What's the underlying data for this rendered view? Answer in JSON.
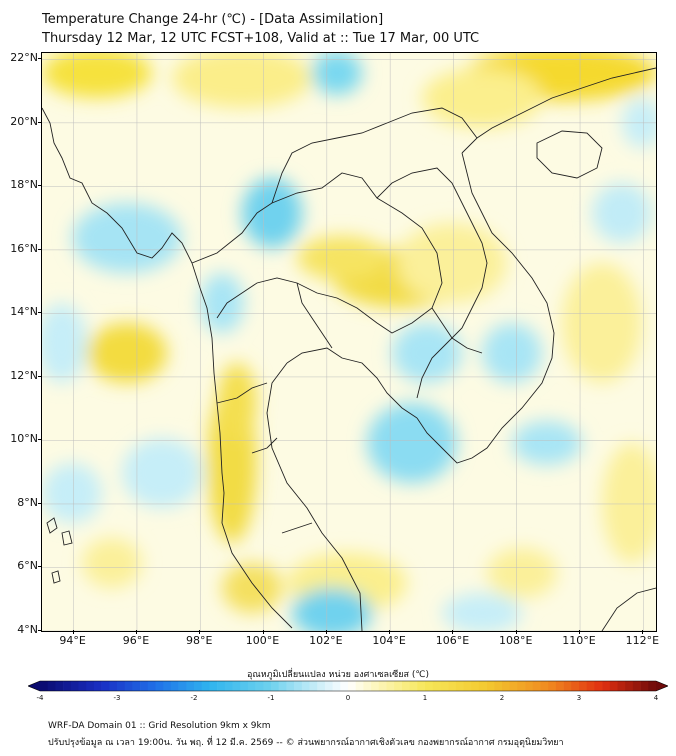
{
  "title_line1": "Temperature Change 24-hr (℃) - [Data Assimilation]",
  "title_line2": "Thursday 12 Mar, 12 UTC FCST+108, Valid at :: Tue 17 Mar, 00 UTC",
  "map": {
    "lat_labels": [
      "22°N",
      "20°N",
      "18°N",
      "16°N",
      "14°N",
      "12°N",
      "10°N",
      "8°N",
      "6°N",
      "4°N"
    ],
    "lon_labels": [
      "94°E",
      "96°E",
      "98°E",
      "100°E",
      "102°E",
      "104°E",
      "106°E",
      "108°E",
      "110°E",
      "112°E"
    ],
    "lat_range": [
      4,
      22.2
    ],
    "lon_range": [
      93,
      112.4
    ],
    "colors": {
      "warm": "#f2dc3a",
      "warm_light": "#fbf3a6",
      "cool": "#7fdcf0",
      "cool_light": "#c6eef8",
      "neutral": "#fdfbe3",
      "coast": "#222222",
      "grid": "#bdbdbd"
    }
  },
  "colorbar": {
    "title": "อุณหภูมิเปลี่ยนแปลง หน่วย องศาเซลเซียส (℃)",
    "ticks": [
      "-4",
      "-3",
      "-2",
      "-1",
      "0",
      "1",
      "2",
      "3",
      "4"
    ],
    "range": [
      -4,
      4
    ]
  },
  "footer_line1": "WRF-DA Domain 01 :: Grid Resolution 9km x 9km",
  "footer_line2": "ปรับปรุงข้อมูล ณ เวลา 19:00น. วัน พฤ. ที่ 12 มี.ค. 2569 -- © ส่วนพยากรณ์อากาศเชิงตัวเลข กองพยากรณ์อากาศ กรมอุตุนิยมวิทยา"
}
